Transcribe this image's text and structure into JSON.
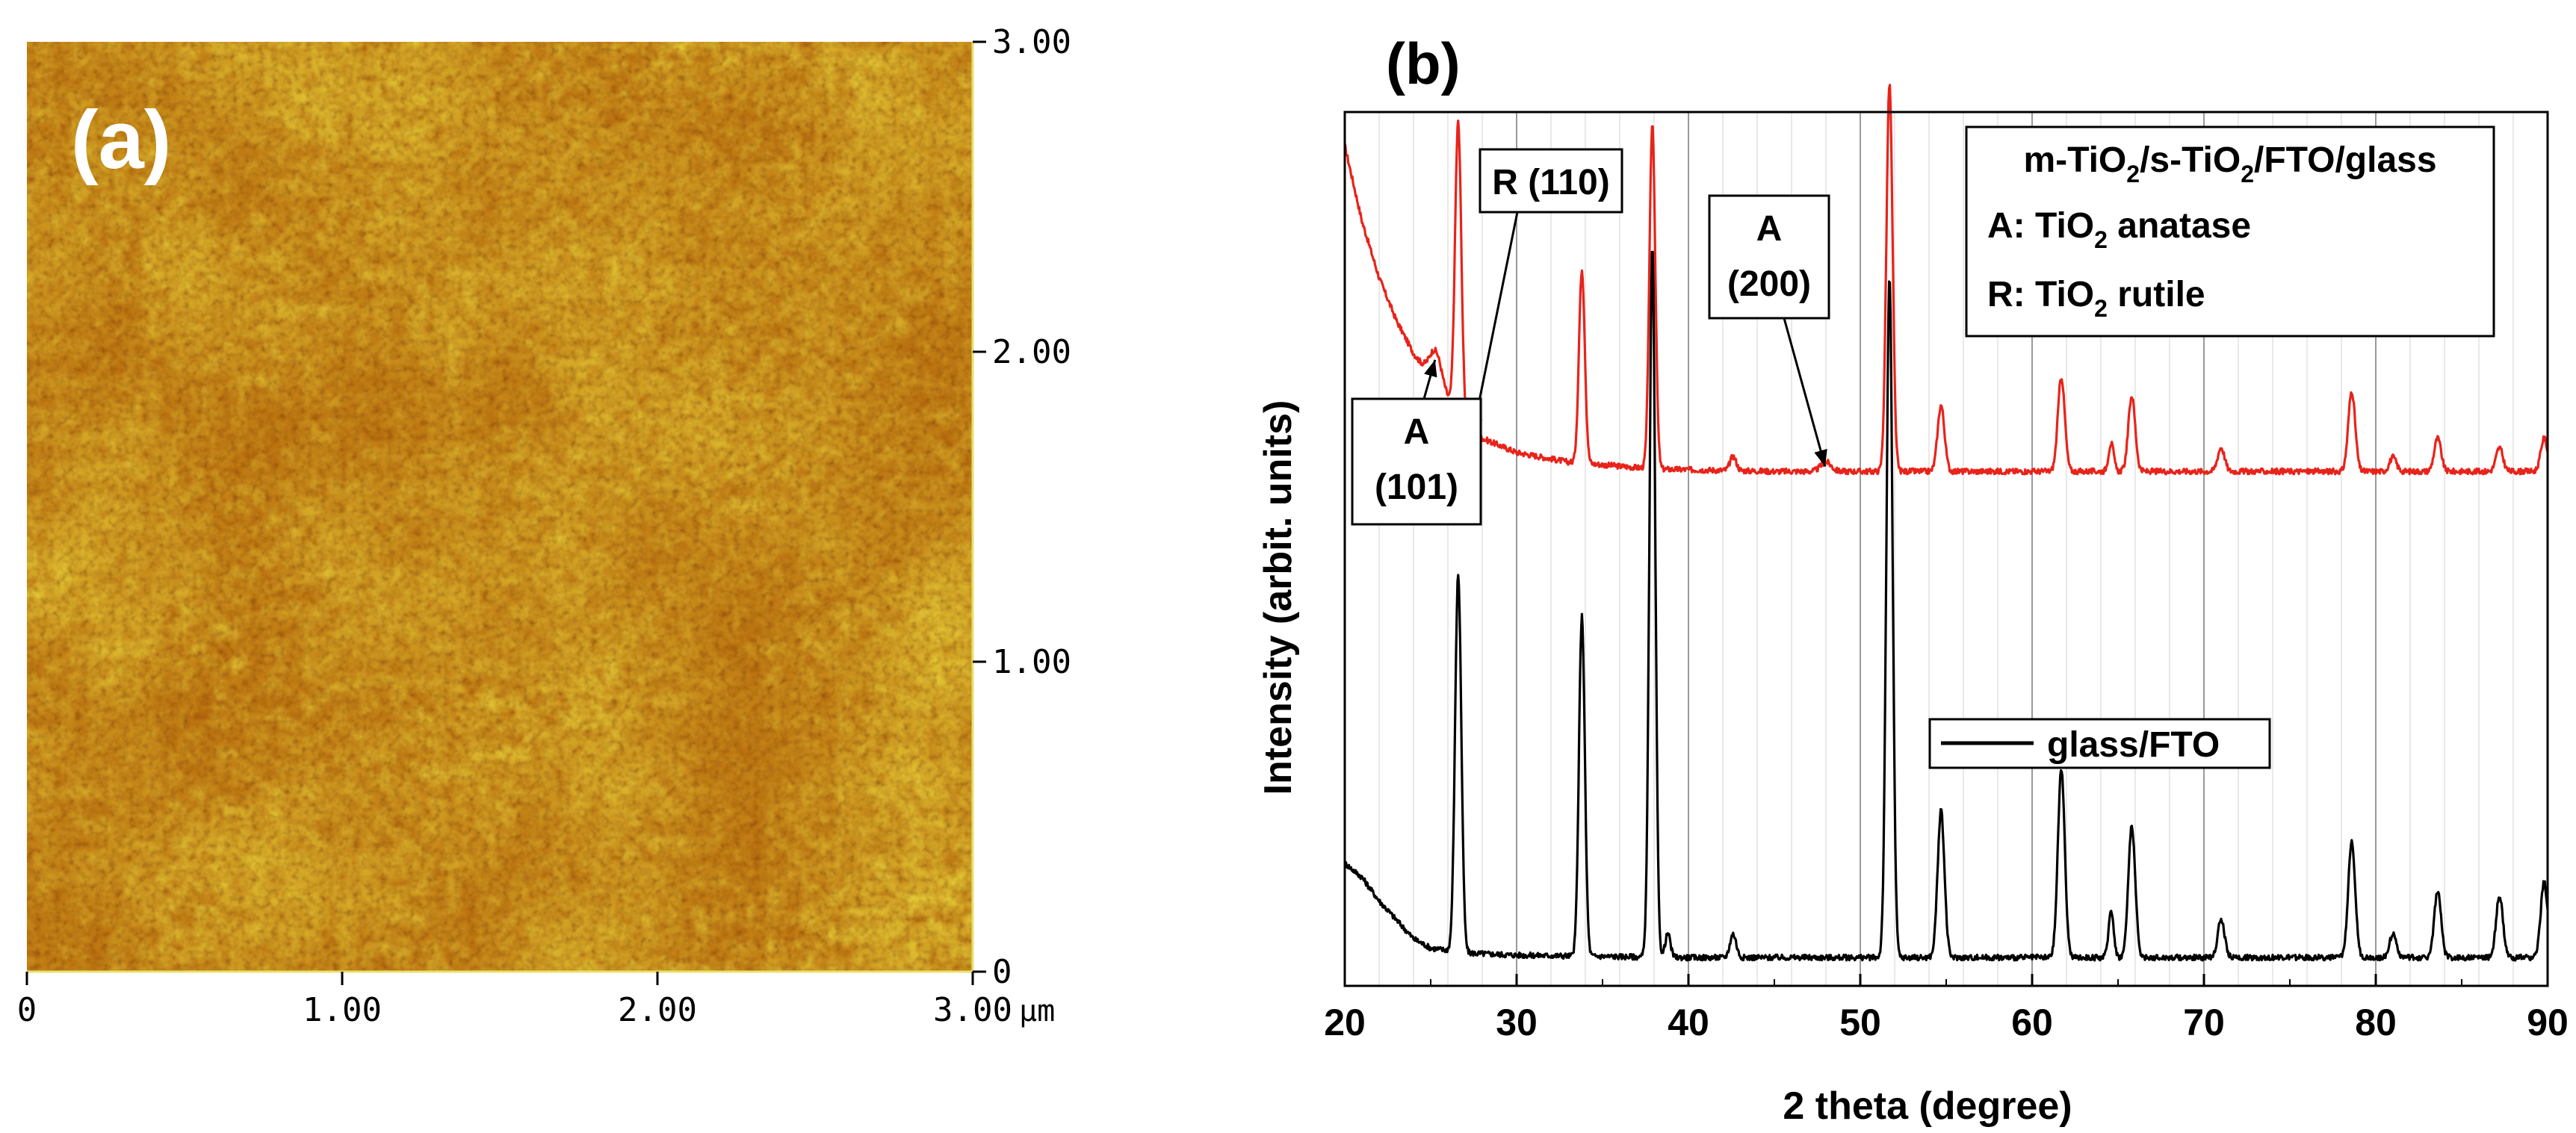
{
  "panel_a": {
    "label": "(a)",
    "x_ticks": [
      "0",
      "1.00",
      "2.00",
      "3.00"
    ],
    "y_ticks": [
      "0",
      "1.00",
      "2.00",
      "3.00"
    ],
    "unit": "μm",
    "colors": {
      "dark": "#7a2e00",
      "mid": "#b86a0c",
      "light": "#e8d23a"
    }
  },
  "panel_b": {
    "label": "(b)",
    "annotations": [
      {
        "lines": [
          "R (110)"
        ],
        "x": 27.4
      },
      {
        "lines": [
          "A",
          "(200)"
        ],
        "x": 48.0
      },
      {
        "lines": [
          "A",
          "(101)"
        ],
        "x": 25.3
      }
    ]
  },
  "chart_data": {
    "type": "line",
    "xlabel": "2 theta  (degree)",
    "ylabel": "Intensity  (arbit. units)",
    "xlim": [
      20,
      90
    ],
    "x_ticks": [
      20,
      30,
      40,
      50,
      60,
      70,
      80,
      90
    ],
    "grid": true,
    "legend_top": {
      "title_parts": [
        "m-TiO",
        "2",
        "/s-TiO",
        "2",
        "/FTO/glass"
      ],
      "lines": [
        {
          "parts": [
            "A: TiO",
            "2",
            " anatase"
          ]
        },
        {
          "parts": [
            "R: TiO",
            "2",
            " rutile"
          ]
        }
      ]
    },
    "legend_bottom": {
      "label": "glass/FTO"
    },
    "series": [
      {
        "key": "m-TiO2/s-TiO2/FTO/glass",
        "color": "#e8231a",
        "baseline": 0.14,
        "background": [
          [
            20,
            0.83
          ],
          [
            21,
            0.67
          ],
          [
            22,
            0.55
          ],
          [
            23,
            0.46
          ],
          [
            24,
            0.39
          ],
          [
            25,
            0.34
          ],
          [
            26,
            0.29
          ],
          [
            27,
            0.24
          ],
          [
            28,
            0.21
          ],
          [
            30,
            0.18
          ],
          [
            33,
            0.16
          ],
          [
            38,
            0.145
          ],
          [
            45,
            0.14
          ],
          [
            90,
            0.14
          ]
        ],
        "peaks": [
          [
            25.3,
            0.07,
            0.35
          ],
          [
            26.6,
            0.62,
            0.18
          ],
          [
            33.8,
            0.41,
            0.17
          ],
          [
            37.9,
            0.73,
            0.17
          ],
          [
            42.6,
            0.03,
            0.18
          ],
          [
            48.0,
            0.02,
            0.3
          ],
          [
            51.7,
            0.82,
            0.18
          ],
          [
            54.7,
            0.14,
            0.2
          ],
          [
            61.7,
            0.2,
            0.2
          ],
          [
            64.6,
            0.06,
            0.15
          ],
          [
            65.8,
            0.16,
            0.2
          ],
          [
            71.0,
            0.05,
            0.2
          ],
          [
            78.6,
            0.17,
            0.2
          ],
          [
            81.0,
            0.03,
            0.2
          ],
          [
            83.6,
            0.07,
            0.2
          ],
          [
            87.2,
            0.05,
            0.2
          ],
          [
            89.8,
            0.07,
            0.2
          ]
        ]
      },
      {
        "key": "glass/FTO",
        "color": "#000000",
        "baseline": 0.06,
        "background": [
          [
            20,
            0.26
          ],
          [
            21,
            0.23
          ],
          [
            22,
            0.18
          ],
          [
            23,
            0.14
          ],
          [
            24,
            0.1
          ],
          [
            25,
            0.08
          ],
          [
            27,
            0.07
          ],
          [
            30,
            0.065
          ],
          [
            40,
            0.06
          ],
          [
            90,
            0.06
          ]
        ],
        "peaks": [
          [
            26.6,
            0.8,
            0.18
          ],
          [
            33.8,
            0.72,
            0.17
          ],
          [
            37.9,
            1.5,
            0.17
          ],
          [
            38.8,
            0.05,
            0.15
          ],
          [
            42.6,
            0.05,
            0.18
          ],
          [
            51.7,
            1.44,
            0.18
          ],
          [
            54.7,
            0.31,
            0.2
          ],
          [
            61.7,
            0.4,
            0.2
          ],
          [
            64.6,
            0.1,
            0.15
          ],
          [
            65.8,
            0.28,
            0.2
          ],
          [
            71.0,
            0.08,
            0.2
          ],
          [
            78.6,
            0.25,
            0.2
          ],
          [
            81.0,
            0.05,
            0.2
          ],
          [
            83.6,
            0.14,
            0.2
          ],
          [
            87.2,
            0.13,
            0.2
          ],
          [
            89.8,
            0.16,
            0.2
          ]
        ]
      }
    ]
  }
}
